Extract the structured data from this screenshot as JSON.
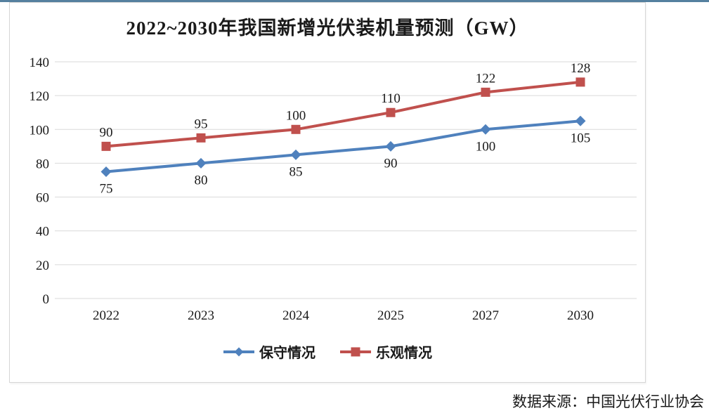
{
  "page": {
    "background": "#ffffff",
    "top_accent_color": "#55809F",
    "source_note": "数据来源：中国光伏行业协会"
  },
  "chart_data": {
    "type": "line",
    "title": "2022~2030年我国新增光伏装机量预测（GW）",
    "categories": [
      "2022",
      "2023",
      "2024",
      "2025",
      "2027",
      "2030"
    ],
    "series": [
      {
        "name": "保守情况",
        "values": [
          75,
          80,
          85,
          90,
          100,
          105
        ],
        "color": "#4F81BD",
        "marker": "diamond",
        "label_position": "below"
      },
      {
        "name": "乐观情况",
        "values": [
          90,
          95,
          100,
          110,
          122,
          128
        ],
        "color": "#C0504D",
        "marker": "square",
        "label_position": "above"
      }
    ],
    "y_axis": {
      "min": 0,
      "max": 140,
      "step": 20
    },
    "grid": true,
    "gridline_color": "#D9D9D9",
    "legend_position": "bottom",
    "text_color": "#1A1A1A"
  }
}
